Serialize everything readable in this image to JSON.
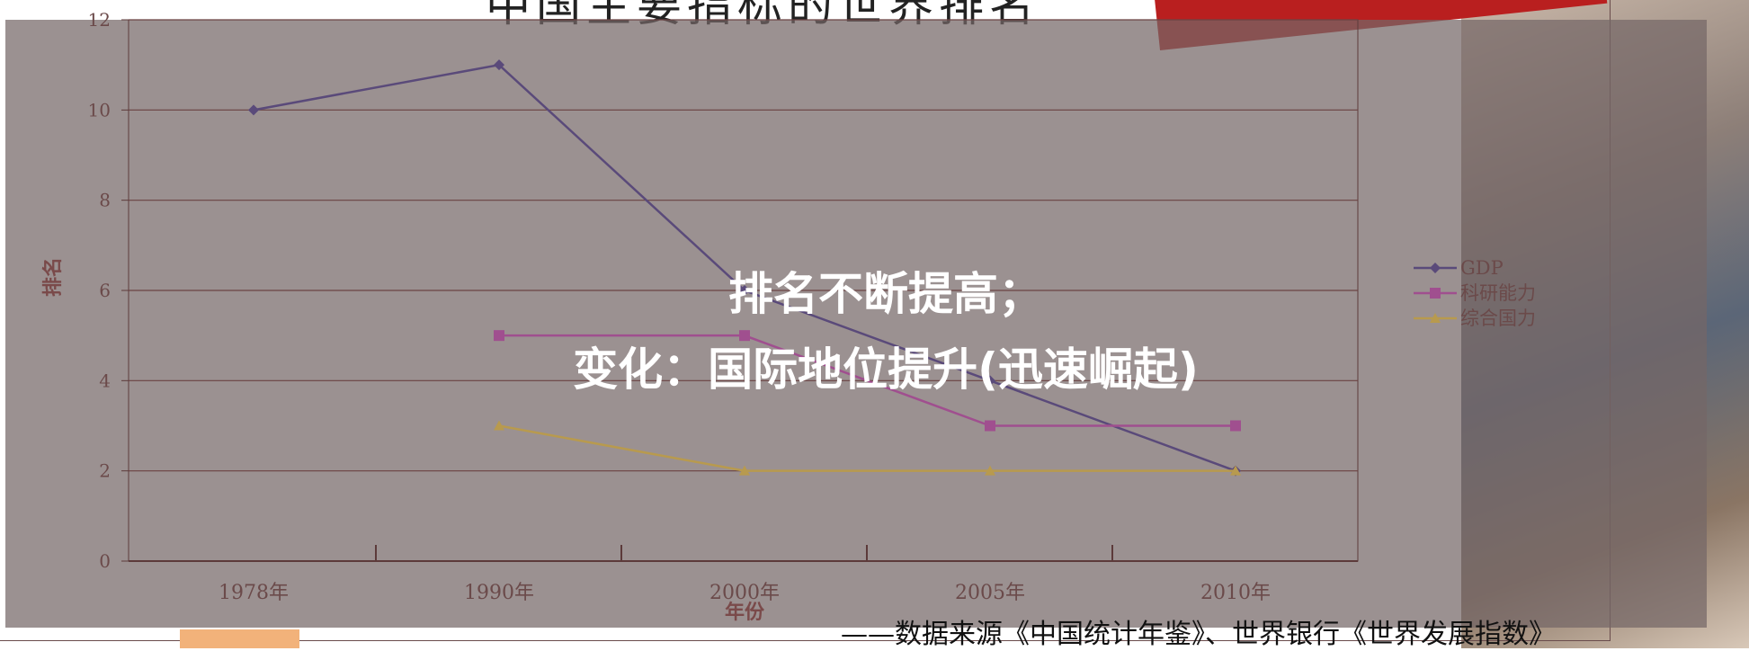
{
  "slide": {
    "title": "中国主要指标的世界排名",
    "caption_line1": "排名不断提高；",
    "caption_line2": "变化：国际地位提升(迅速崛起)",
    "source_note": "——数据来源《中国统计年鉴》、世界银行《世界发展指数》"
  },
  "chart_data": {
    "type": "line",
    "categories": [
      "1978年",
      "1990年",
      "2000年",
      "2005年",
      "2010年"
    ],
    "xlabel": "年份",
    "ylabel": "排名",
    "ylim": [
      0,
      12
    ],
    "yticks": [
      0,
      2,
      4,
      6,
      8,
      10,
      12
    ],
    "grid": true,
    "legend_position": "right",
    "series": [
      {
        "name": "GDP",
        "values": [
          10,
          11,
          6,
          4,
          2
        ],
        "color": "#5a4a7a",
        "marker": "diamond"
      },
      {
        "name": "科研能力",
        "values": [
          null,
          5,
          5,
          3,
          3
        ],
        "color": "#a04f8f",
        "marker": "square"
      },
      {
        "name": "综合国力",
        "values": [
          null,
          3,
          2,
          2,
          2
        ],
        "color": "#b89a4e",
        "marker": "triangle"
      }
    ]
  }
}
